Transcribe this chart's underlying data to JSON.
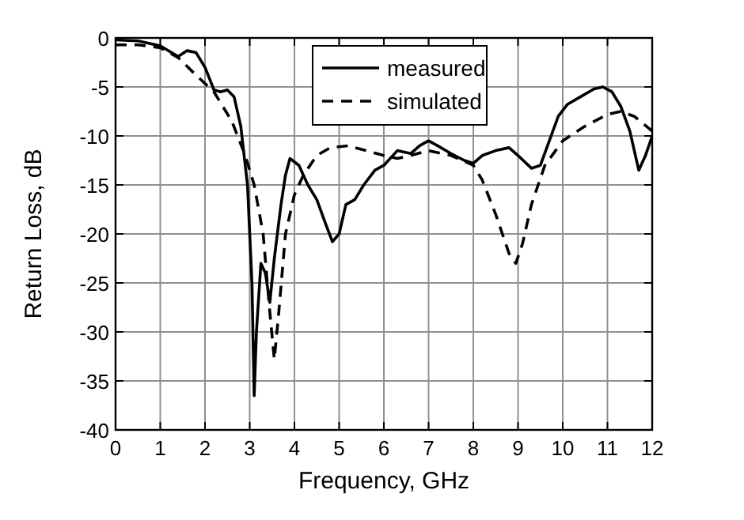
{
  "chart_data": {
    "type": "line",
    "xlabel": "Frequency, GHz",
    "ylabel": "Return Loss, dB",
    "xlim": [
      0,
      12
    ],
    "ylim": [
      -40,
      0
    ],
    "xticks": [
      0,
      1,
      2,
      3,
      4,
      5,
      6,
      7,
      8,
      9,
      10,
      11,
      12
    ],
    "yticks": [
      -40,
      -35,
      -30,
      -25,
      -20,
      -15,
      -10,
      -5,
      0
    ],
    "grid": true,
    "legend": "top",
    "marker": "none",
    "series": [
      {
        "name": "measured",
        "color": "#000000",
        "line_style": "solid",
        "x": [
          0,
          0.5,
          1,
          1.4,
          1.6,
          1.8,
          2.0,
          2.2,
          2.35,
          2.5,
          2.65,
          2.8,
          2.95,
          3.05,
          3.1,
          3.15,
          3.25,
          3.35,
          3.45,
          3.55,
          3.7,
          3.8,
          3.9,
          4.1,
          4.3,
          4.5,
          4.7,
          4.85,
          5.0,
          5.15,
          5.35,
          5.55,
          5.8,
          6.0,
          6.3,
          6.6,
          6.8,
          7,
          7.2,
          7.5,
          7.8,
          8.0,
          8.2,
          8.5,
          8.8,
          9.0,
          9.3,
          9.5,
          9.7,
          9.9,
          10.1,
          10.4,
          10.7,
          10.9,
          11.1,
          11.3,
          11.5,
          11.7,
          11.85,
          12
        ],
        "values": [
          -0.2,
          -0.3,
          -0.8,
          -1.9,
          -1.3,
          -1.5,
          -3,
          -5.3,
          -5.5,
          -5.3,
          -6,
          -9,
          -15,
          -25,
          -36.5,
          -30,
          -23,
          -24,
          -27,
          -22.5,
          -17,
          -14,
          -12.3,
          -13,
          -15,
          -16.5,
          -19,
          -20.8,
          -20,
          -17,
          -16.5,
          -15,
          -13.5,
          -13,
          -11.5,
          -11.8,
          -11,
          -10.5,
          -11,
          -11.8,
          -12.5,
          -12.8,
          -12,
          -11.5,
          -11.2,
          -12,
          -13.3,
          -13,
          -10.5,
          -8,
          -6.8,
          -6,
          -5.2,
          -5,
          -5.5,
          -7,
          -9.5,
          -13.5,
          -12,
          -10
        ]
      },
      {
        "name": "simulated",
        "color": "#000000",
        "line_style": "dashed",
        "x": [
          0,
          0.5,
          1,
          1.4,
          1.8,
          2.2,
          2.6,
          2.9,
          3.1,
          3.3,
          3.45,
          3.55,
          3.65,
          3.8,
          4.0,
          4.2,
          4.5,
          4.8,
          5.2,
          5.6,
          6.0,
          6.3,
          6.6,
          7,
          7.5,
          8.0,
          8.2,
          8.5,
          8.8,
          8.95,
          9.1,
          9.3,
          9.6,
          10,
          10.5,
          11,
          11.3,
          11.6,
          12
        ],
        "values": [
          -0.7,
          -0.7,
          -1,
          -2,
          -3.8,
          -5.5,
          -8.5,
          -12,
          -15,
          -20,
          -28,
          -32.8,
          -28,
          -20,
          -16,
          -14,
          -12,
          -11.2,
          -11,
          -11.5,
          -12,
          -12.3,
          -12,
          -11.5,
          -12,
          -13,
          -14.5,
          -18,
          -22,
          -23,
          -21,
          -17,
          -13,
          -10.5,
          -9,
          -7.8,
          -7.5,
          -8,
          -9.5
        ]
      }
    ]
  }
}
